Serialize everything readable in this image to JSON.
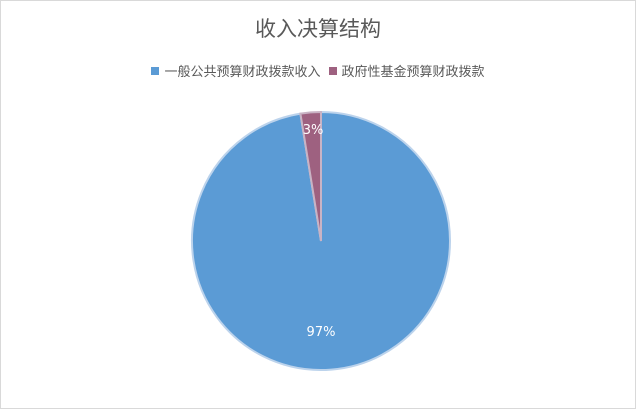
{
  "chart_data": {
    "type": "pie",
    "title": "收入决算结构",
    "categories": [
      "一般公共预算财政拨款收入",
      "政府性基金预算财政拨款"
    ],
    "values": [
      97,
      3
    ],
    "data_labels": [
      "97%",
      "3%"
    ],
    "colors": [
      "#5B9BD5",
      "#9E6180"
    ],
    "legend_position": "top",
    "start_angle": "12 o'clock, counter-clockwise order of second slice"
  }
}
